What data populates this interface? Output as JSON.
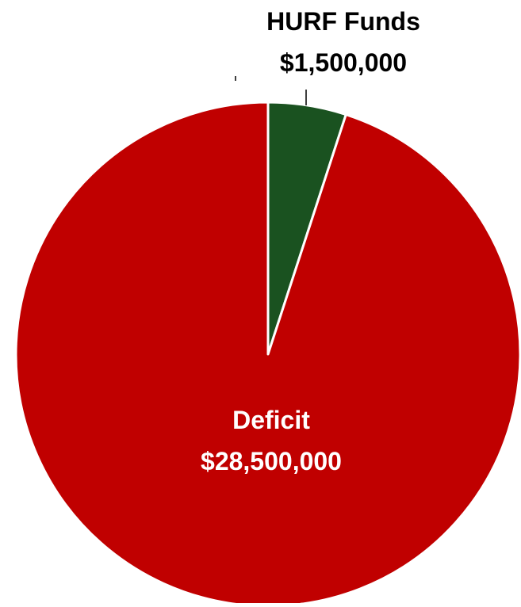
{
  "chart_data": {
    "type": "pie",
    "title": "",
    "slices": [
      {
        "name": "HURF Funds",
        "value": 1500000,
        "value_label": "$1,500,000",
        "color": "#1a5220"
      },
      {
        "name": "Deficit",
        "value": 28500000,
        "value_label": "$28,500,000",
        "color": "#c00000"
      }
    ],
    "start_angle": "12 o'clock",
    "direction": "clockwise",
    "slice_border_color": "#ffffff",
    "legend": "none",
    "label_colors": {
      "HURF Funds": "#000000",
      "Deficit": "#ffffff"
    }
  }
}
